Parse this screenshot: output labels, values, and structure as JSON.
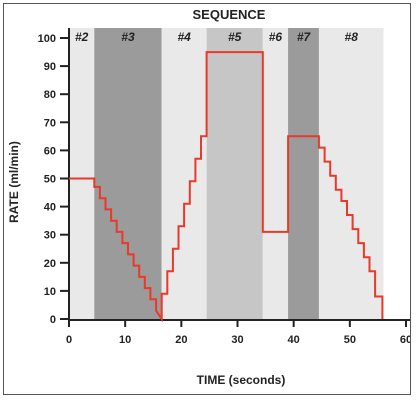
{
  "chart_data": {
    "type": "line",
    "title": "SEQUENCE",
    "xlabel": "TIME (seconds)",
    "ylabel": "RATE (ml/min)",
    "xlim": [
      0,
      60
    ],
    "ylim": [
      0,
      100
    ],
    "xticks": [
      0,
      10,
      20,
      30,
      40,
      50,
      60
    ],
    "yticks": [
      0,
      10,
      20,
      30,
      40,
      50,
      60,
      70,
      80,
      90,
      100
    ],
    "line_color": "#e8392a",
    "segments": [
      {
        "label": "#2",
        "start": 0,
        "end": 4.5,
        "shade": "#e9e9e9"
      },
      {
        "label": "#3",
        "start": 4.5,
        "end": 16.5,
        "shade": "#9b9b9b"
      },
      {
        "label": "#4",
        "start": 16.5,
        "end": 24.5,
        "shade": "#e9e9e9"
      },
      {
        "label": "#5",
        "start": 24.5,
        "end": 34.5,
        "shade": "#c6c6c6"
      },
      {
        "label": "#6",
        "start": 34.5,
        "end": 39,
        "shade": "#e9e9e9"
      },
      {
        "label": "#7",
        "start": 39,
        "end": 44.5,
        "shade": "#9b9b9b"
      },
      {
        "label": "#8",
        "start": 44.5,
        "end": 56,
        "shade": "#e9e9e9"
      }
    ],
    "series": [
      {
        "values": [
          [
            0,
            50
          ],
          [
            4.5,
            50
          ],
          [
            4.5,
            47
          ],
          [
            5.5,
            47
          ],
          [
            5.5,
            43
          ],
          [
            6.5,
            43
          ],
          [
            6.5,
            39
          ],
          [
            7.5,
            39
          ],
          [
            7.5,
            35
          ],
          [
            8.5,
            35
          ],
          [
            8.5,
            31
          ],
          [
            9.5,
            31
          ],
          [
            9.5,
            27
          ],
          [
            10.5,
            27
          ],
          [
            10.5,
            23
          ],
          [
            11.5,
            23
          ],
          [
            11.5,
            19
          ],
          [
            12.5,
            19
          ],
          [
            12.5,
            15
          ],
          [
            13.5,
            15
          ],
          [
            13.5,
            11
          ],
          [
            14.5,
            11
          ],
          [
            14.5,
            7
          ],
          [
            15.5,
            7
          ],
          [
            15.5,
            3
          ],
          [
            16.5,
            0
          ],
          [
            16.5,
            9
          ],
          [
            17.5,
            9
          ],
          [
            17.5,
            17
          ],
          [
            18.5,
            17
          ],
          [
            18.5,
            25
          ],
          [
            19.5,
            25
          ],
          [
            19.5,
            33
          ],
          [
            20.5,
            33
          ],
          [
            20.5,
            41
          ],
          [
            21.5,
            41
          ],
          [
            21.5,
            49
          ],
          [
            22.5,
            49
          ],
          [
            22.5,
            57
          ],
          [
            23.5,
            57
          ],
          [
            23.5,
            65
          ],
          [
            24.5,
            65
          ],
          [
            24.5,
            95
          ],
          [
            34.5,
            95
          ],
          [
            34.5,
            31
          ],
          [
            39,
            31
          ],
          [
            39,
            65
          ],
          [
            44.5,
            65
          ],
          [
            44.5,
            61
          ],
          [
            45.5,
            61
          ],
          [
            45.5,
            56
          ],
          [
            46.5,
            56
          ],
          [
            46.5,
            51
          ],
          [
            47.5,
            51
          ],
          [
            47.5,
            46
          ],
          [
            48.5,
            46
          ],
          [
            48.5,
            42
          ],
          [
            49.5,
            42
          ],
          [
            49.5,
            37
          ],
          [
            50.5,
            37
          ],
          [
            50.5,
            32
          ],
          [
            51.5,
            32
          ],
          [
            51.5,
            27
          ],
          [
            52.5,
            27
          ],
          [
            52.5,
            22
          ],
          [
            53.5,
            22
          ],
          [
            53.5,
            17
          ],
          [
            54.5,
            17
          ],
          [
            54.5,
            8
          ],
          [
            55.8,
            8
          ],
          [
            55.8,
            0
          ]
        ]
      }
    ]
  }
}
